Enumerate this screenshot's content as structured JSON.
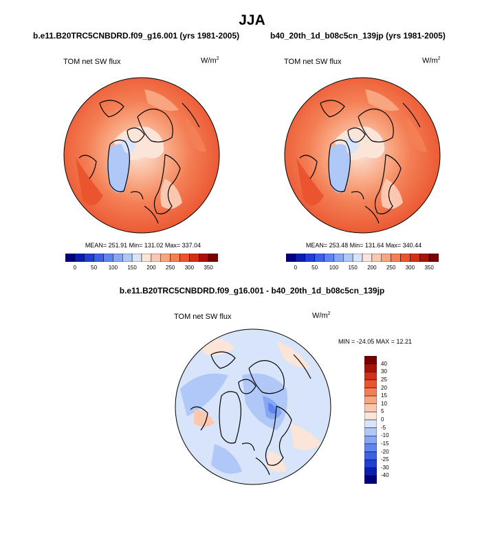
{
  "figure": {
    "season": "JJA",
    "panels": [
      {
        "title": "b.e11.B20TRC5CNBDRD.f09_g16.001 (yrs 1981-2005)",
        "variable": "TOM net SW flux",
        "units": "W/m",
        "units_exp": "2",
        "stats": "MEAN= 251.91  Min= 131.02  Max= 337.04"
      },
      {
        "title": "b40_20th_1d_b08c5cn_139jp (yrs 1981-2005)",
        "variable": "TOM net SW flux",
        "units": "W/m",
        "units_exp": "2",
        "stats": "MEAN= 253.48  Min= 131.64  Max= 340.44"
      }
    ],
    "diff": {
      "title": "b.e11.B20TRC5CNBDRD.f09_g16.001 - b40_20th_1d_b08c5cn_139jp",
      "variable": "TOM net SW flux",
      "units": "W/m",
      "units_exp": "2",
      "stats": "MIN = -24.05 MAX =  12.21"
    }
  },
  "chart_data": [
    {
      "type": "heatmap",
      "projection": "north-polar-stereographic",
      "title": "b.e11.B20TRC5CNBDRD.f09_g16.001 (yrs 1981-2005)",
      "variable": "TOM net SW flux",
      "units": "W/m2",
      "mean": 251.91,
      "min": 131.02,
      "max": 337.04,
      "colorbar": {
        "levels": [
          0,
          25,
          50,
          75,
          100,
          125,
          150,
          175,
          200,
          225,
          250,
          275,
          300,
          325,
          350
        ],
        "tick_labels": [
          "0",
          "50",
          "100",
          "150",
          "200",
          "250",
          "300",
          "350"
        ],
        "colors": [
          "#00007f",
          "#0a1fb0",
          "#1f3fd6",
          "#3c62ea",
          "#5f86f0",
          "#86a7f4",
          "#b0c8f7",
          "#d8e4fa",
          "#fbe4d8",
          "#fbc7ae",
          "#f8a580",
          "#f47f55",
          "#ea5530",
          "#d42f17",
          "#a81209",
          "#7a0000"
        ]
      }
    },
    {
      "type": "heatmap",
      "projection": "north-polar-stereographic",
      "title": "b40_20th_1d_b08c5cn_139jp (yrs 1981-2005)",
      "variable": "TOM net SW flux",
      "units": "W/m2",
      "mean": 253.48,
      "min": 131.64,
      "max": 340.44,
      "colorbar": {
        "levels": [
          0,
          25,
          50,
          75,
          100,
          125,
          150,
          175,
          200,
          225,
          250,
          275,
          300,
          325,
          350
        ],
        "tick_labels": [
          "0",
          "50",
          "100",
          "150",
          "200",
          "250",
          "300",
          "350"
        ],
        "colors": [
          "#00007f",
          "#0a1fb0",
          "#1f3fd6",
          "#3c62ea",
          "#5f86f0",
          "#86a7f4",
          "#b0c8f7",
          "#d8e4fa",
          "#fbe4d8",
          "#fbc7ae",
          "#f8a580",
          "#f47f55",
          "#ea5530",
          "#d42f17",
          "#a81209",
          "#7a0000"
        ]
      }
    },
    {
      "type": "heatmap",
      "projection": "north-polar-stereographic",
      "title": "b.e11.B20TRC5CNBDRD.f09_g16.001 - b40_20th_1d_b08c5cn_139jp",
      "variable": "TOM net SW flux",
      "units": "W/m2",
      "min": -24.05,
      "max": 12.21,
      "colorbar": {
        "levels": [
          -40,
          -30,
          -25,
          -20,
          -15,
          -10,
          -5,
          0,
          5,
          10,
          15,
          20,
          25,
          30,
          40
        ],
        "tick_labels": [
          "40",
          "30",
          "25",
          "20",
          "15",
          "10",
          "5",
          "0",
          "-5",
          "-10",
          "-15",
          "-20",
          "-25",
          "-30",
          "-40"
        ],
        "colors": [
          "#00007f",
          "#0a1fb0",
          "#1f3fd6",
          "#3c62ea",
          "#5f86f0",
          "#86a7f4",
          "#b0c8f7",
          "#d8e4fa",
          "#fbe4d8",
          "#fbc7ae",
          "#f8a580",
          "#f47f55",
          "#ea5530",
          "#d42f17",
          "#a81209",
          "#7a0000"
        ]
      }
    }
  ]
}
